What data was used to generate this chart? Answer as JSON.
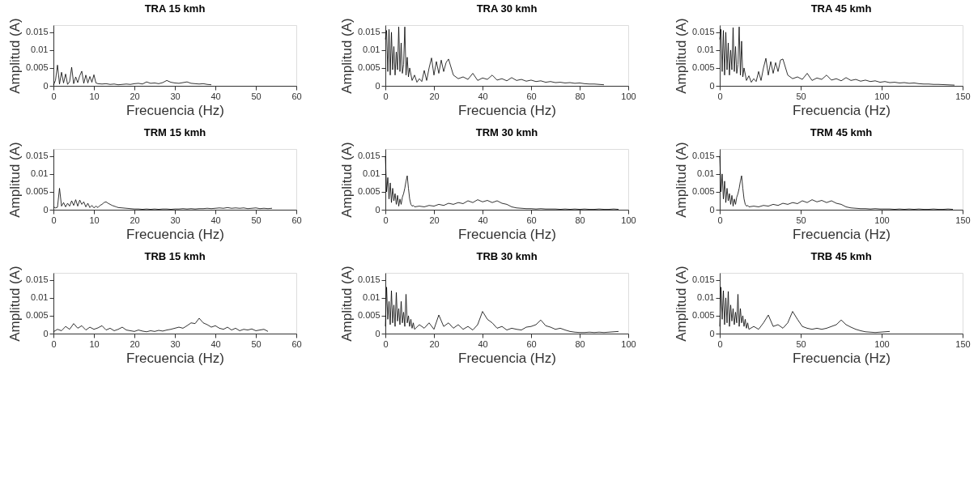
{
  "chart_data": [
    {
      "type": "line",
      "title": "TRA 15 kmh",
      "xlabel": "Frecuencia (Hz)",
      "ylabel": "Amplitud (A)",
      "xlim": [
        0,
        60
      ],
      "xticks": [
        0,
        10,
        20,
        30,
        40,
        50,
        60
      ],
      "ylim": [
        0,
        0.017
      ],
      "yticks": [
        0,
        0.005,
        0.01,
        0.015
      ],
      "grid": false,
      "x": [
        0,
        0.5,
        1,
        1.5,
        2,
        2.5,
        3,
        3.5,
        4,
        4.5,
        5,
        5.5,
        6,
        6.5,
        7,
        7.5,
        8,
        8.5,
        9,
        9.5,
        10,
        10.5,
        11,
        12,
        13,
        14,
        15,
        16,
        17,
        18,
        19,
        20,
        21,
        22,
        23,
        24,
        25,
        26,
        27,
        28,
        29,
        30,
        31,
        32,
        33,
        34,
        35,
        36,
        37,
        38,
        39
      ],
      "series": [
        {
          "color": "#000000",
          "values": [
            0.0002,
            0.0015,
            0.0058,
            0.0005,
            0.0038,
            0.0008,
            0.0033,
            0.0004,
            0.0012,
            0.0052,
            0.0006,
            0.0025,
            0.0009,
            0.0028,
            0.0041,
            0.0007,
            0.003,
            0.0008,
            0.0026,
            0.001,
            0.0031,
            0.0008,
            0.0006,
            0.0005,
            0.0006,
            0.0004,
            0.0005,
            0.0003,
            0.0004,
            0.0005,
            0.0004,
            0.0006,
            0.0007,
            0.0005,
            0.0011,
            0.0007,
            0.0008,
            0.0006,
            0.0009,
            0.0015,
            0.001,
            0.0008,
            0.0007,
            0.0009,
            0.0011,
            0.0007,
            0.0006,
            0.0005,
            0.0006,
            0.0004,
            0.0003
          ]
        }
      ]
    },
    {
      "type": "line",
      "title": "TRA 30 kmh",
      "xlabel": "Frecuencia (Hz)",
      "ylabel": "Amplitud (A)",
      "xlim": [
        0,
        100
      ],
      "xticks": [
        0,
        20,
        40,
        60,
        80,
        100
      ],
      "ylim": [
        0,
        0.017
      ],
      "yticks": [
        0,
        0.005,
        0.01,
        0.015
      ],
      "grid": false,
      "x": [
        0,
        0.5,
        1,
        1.5,
        2,
        2.5,
        3,
        3.5,
        4,
        4.5,
        5,
        5.5,
        6,
        6.5,
        7,
        7.5,
        8,
        8.5,
        9,
        9.5,
        10,
        11,
        12,
        13,
        14,
        15,
        16,
        17,
        18,
        19,
        20,
        21,
        22,
        23,
        24,
        25,
        26,
        28,
        30,
        32,
        34,
        36,
        38,
        40,
        42,
        44,
        46,
        48,
        50,
        52,
        54,
        56,
        58,
        60,
        62,
        64,
        66,
        68,
        70,
        72,
        74,
        76,
        78,
        80,
        82,
        84,
        86,
        88,
        90
      ],
      "series": [
        {
          "color": "#000000",
          "values": [
            0.013,
            0.0155,
            0.004,
            0.0158,
            0.003,
            0.015,
            0.0045,
            0.011,
            0.003,
            0.0095,
            0.0045,
            0.0165,
            0.004,
            0.012,
            0.0035,
            0.006,
            0.0165,
            0.003,
            0.008,
            0.0025,
            0.005,
            0.0015,
            0.003,
            0.001,
            0.002,
            0.0012,
            0.0043,
            0.0015,
            0.005,
            0.0078,
            0.003,
            0.0068,
            0.0035,
            0.0072,
            0.004,
            0.0065,
            0.0075,
            0.003,
            0.002,
            0.0025,
            0.0018,
            0.0035,
            0.0015,
            0.0022,
            0.0018,
            0.003,
            0.0016,
            0.002,
            0.0014,
            0.0023,
            0.0015,
            0.0018,
            0.0013,
            0.0016,
            0.0012,
            0.0014,
            0.001,
            0.0012,
            0.0009,
            0.001,
            0.0008,
            0.0009,
            0.0007,
            0.0008,
            0.0006,
            0.0005,
            0.0005,
            0.0004,
            0.0003
          ]
        }
      ]
    },
    {
      "type": "line",
      "title": "TRA 45 kmh",
      "xlabel": "Frecuencia (Hz)",
      "ylabel": "Amplitud (A)",
      "xlim": [
        0,
        150
      ],
      "xticks": [
        0,
        50,
        100,
        150
      ],
      "ylim": [
        0,
        0.017
      ],
      "yticks": [
        0,
        0.005,
        0.01,
        0.015
      ],
      "grid": false,
      "x": [
        0,
        0.75,
        1.5,
        2.25,
        3,
        3.75,
        4.5,
        5.25,
        6,
        6.75,
        7.5,
        8.25,
        9,
        9.75,
        10.5,
        11.25,
        12,
        12.75,
        13.5,
        14.25,
        15,
        16.5,
        18,
        19.5,
        21,
        22.5,
        24,
        25.5,
        27,
        28.5,
        30,
        31.5,
        33,
        34.5,
        36,
        37.5,
        39,
        42,
        45,
        48,
        51,
        54,
        57,
        60,
        63,
        66,
        69,
        72,
        75,
        78,
        81,
        84,
        87,
        90,
        93,
        96,
        99,
        102,
        105,
        108,
        111,
        114,
        117,
        120,
        123,
        126,
        129,
        132,
        135,
        140,
        145
      ],
      "series": [
        {
          "color": "#000000",
          "values": [
            0.013,
            0.0158,
            0.004,
            0.0155,
            0.003,
            0.015,
            0.0045,
            0.012,
            0.003,
            0.01,
            0.0045,
            0.0163,
            0.004,
            0.011,
            0.0035,
            0.006,
            0.0165,
            0.003,
            0.0125,
            0.0025,
            0.005,
            0.0015,
            0.0028,
            0.001,
            0.002,
            0.0012,
            0.004,
            0.0015,
            0.005,
            0.0077,
            0.003,
            0.0068,
            0.0035,
            0.0065,
            0.004,
            0.0072,
            0.0075,
            0.003,
            0.002,
            0.0025,
            0.0018,
            0.0035,
            0.0015,
            0.0022,
            0.0018,
            0.003,
            0.0016,
            0.002,
            0.0014,
            0.0023,
            0.0015,
            0.0018,
            0.0013,
            0.0016,
            0.0012,
            0.0014,
            0.001,
            0.0012,
            0.0009,
            0.001,
            0.0008,
            0.0009,
            0.0007,
            0.0008,
            0.0006,
            0.0005,
            0.0005,
            0.0004,
            0.0004,
            0.0003,
            0.0002
          ]
        }
      ]
    },
    {
      "type": "line",
      "title": "TRM 15 kmh",
      "xlabel": "Frecuencia (Hz)",
      "ylabel": "Amplitud (A)",
      "xlim": [
        0,
        60
      ],
      "xticks": [
        0,
        10,
        20,
        30,
        40,
        50,
        60
      ],
      "ylim": [
        0,
        0.017
      ],
      "yticks": [
        0,
        0.005,
        0.01,
        0.015
      ],
      "grid": false,
      "x": [
        0,
        0.5,
        1,
        1.5,
        2,
        2.5,
        3,
        3.5,
        4,
        4.5,
        5,
        5.5,
        6,
        6.5,
        7,
        7.5,
        8,
        8.5,
        9,
        9.5,
        10,
        10.5,
        11,
        11.5,
        12,
        12.5,
        13,
        13.5,
        14,
        14.5,
        15,
        15.5,
        16,
        17,
        18,
        19,
        20,
        21,
        22,
        23,
        24,
        25,
        26,
        27,
        28,
        29,
        30,
        31,
        32,
        33,
        34,
        35,
        36,
        37,
        38,
        39,
        40,
        41,
        42,
        43,
        44,
        45,
        46,
        47,
        48,
        49,
        50,
        51,
        52,
        53,
        54
      ],
      "series": [
        {
          "color": "#000000",
          "values": [
            0.0008,
            0.0005,
            0.0007,
            0.006,
            0.001,
            0.002,
            0.0008,
            0.0018,
            0.001,
            0.0025,
            0.0012,
            0.0028,
            0.001,
            0.0027,
            0.0015,
            0.0022,
            0.0008,
            0.0018,
            0.0006,
            0.0012,
            0.0005,
            0.001,
            0.0006,
            0.0012,
            0.0015,
            0.002,
            0.0022,
            0.0018,
            0.0015,
            0.0012,
            0.001,
            0.0008,
            0.0006,
            0.0005,
            0.0004,
            0.0003,
            0.0002,
            0.0002,
            0.0001,
            0.0002,
            0.0001,
            0.0002,
            0.0001,
            0.0002,
            0.0002,
            0.0001,
            0.0002,
            0.0002,
            0.0003,
            0.0002,
            0.0003,
            0.0002,
            0.0003,
            0.0003,
            0.0004,
            0.0003,
            0.0004,
            0.0005,
            0.0004,
            0.0006,
            0.0004,
            0.0005,
            0.0004,
            0.0005,
            0.0003,
            0.0004,
            0.0005,
            0.0003,
            0.0004,
            0.0003,
            0.0004
          ]
        }
      ]
    },
    {
      "type": "line",
      "title": "TRM 30 kmh",
      "xlabel": "Frecuencia (Hz)",
      "ylabel": "Amplitud (A)",
      "xlim": [
        0,
        100
      ],
      "xticks": [
        0,
        20,
        40,
        60,
        80,
        100
      ],
      "ylim": [
        0,
        0.017
      ],
      "yticks": [
        0,
        0.005,
        0.01,
        0.015
      ],
      "grid": false,
      "x": [
        0,
        0.5,
        1,
        1.5,
        2,
        2.5,
        3,
        3.5,
        4,
        4.5,
        5,
        5.5,
        6,
        6.5,
        7,
        7.5,
        8,
        8.5,
        9,
        9.5,
        10,
        10.5,
        11,
        11.5,
        12,
        14,
        16,
        18,
        20,
        22,
        24,
        26,
        28,
        30,
        32,
        34,
        36,
        38,
        40,
        42,
        44,
        46,
        48,
        50,
        52,
        54,
        56,
        58,
        60,
        62,
        64,
        66,
        68,
        70,
        72,
        74,
        76,
        78,
        80,
        82,
        84,
        86,
        88,
        90,
        92,
        94,
        96
      ],
      "series": [
        {
          "color": "#000000",
          "values": [
            0.015,
            0.005,
            0.009,
            0.003,
            0.0075,
            0.002,
            0.006,
            0.0025,
            0.0045,
            0.0015,
            0.004,
            0.001,
            0.003,
            0.0015,
            0.0035,
            0.0045,
            0.006,
            0.008,
            0.0095,
            0.006,
            0.003,
            0.0015,
            0.001,
            0.0012,
            0.0008,
            0.001,
            0.0008,
            0.0012,
            0.001,
            0.0015,
            0.0012,
            0.0018,
            0.0015,
            0.002,
            0.0017,
            0.0025,
            0.002,
            0.0028,
            0.0022,
            0.0026,
            0.002,
            0.0025,
            0.0018,
            0.0015,
            0.0008,
            0.0005,
            0.0004,
            0.0003,
            0.0003,
            0.0002,
            0.0003,
            0.0002,
            0.0002,
            0.0002,
            0.0001,
            0.0002,
            0.0001,
            0.0002,
            0.0001,
            0.0002,
            0.0001,
            0.0001,
            0.0002,
            0.0001,
            0.0001,
            0.0002,
            0.0001
          ]
        }
      ]
    },
    {
      "type": "line",
      "title": "TRM 45 kmh",
      "xlabel": "Frecuencia (Hz)",
      "ylabel": "Amplitud (A)",
      "xlim": [
        0,
        150
      ],
      "xticks": [
        0,
        50,
        100,
        150
      ],
      "ylim": [
        0,
        0.017
      ],
      "yticks": [
        0,
        0.005,
        0.01,
        0.015
      ],
      "grid": false,
      "x": [
        0,
        0.75,
        1.5,
        2.25,
        3,
        3.75,
        4.5,
        5.25,
        6,
        6.75,
        7.5,
        8.25,
        9,
        9.75,
        10.5,
        11.25,
        12,
        12.75,
        13.5,
        14.25,
        15,
        15.75,
        16.5,
        17.25,
        18,
        21,
        24,
        27,
        30,
        33,
        36,
        39,
        42,
        45,
        48,
        51,
        54,
        57,
        60,
        63,
        66,
        69,
        72,
        75,
        78,
        81,
        84,
        87,
        90,
        93,
        96,
        99,
        102,
        105,
        108,
        111,
        114,
        117,
        120,
        123,
        126,
        129,
        132,
        135,
        138,
        141,
        144
      ],
      "series": [
        {
          "color": "#000000",
          "values": [
            0.015,
            0.005,
            0.01,
            0.003,
            0.008,
            0.002,
            0.006,
            0.0025,
            0.0045,
            0.0015,
            0.004,
            0.001,
            0.003,
            0.0015,
            0.0035,
            0.0045,
            0.006,
            0.008,
            0.0095,
            0.006,
            0.003,
            0.0015,
            0.001,
            0.0012,
            0.0008,
            0.001,
            0.0008,
            0.0012,
            0.001,
            0.0015,
            0.0012,
            0.0018,
            0.0015,
            0.002,
            0.0017,
            0.0025,
            0.002,
            0.0028,
            0.0022,
            0.0026,
            0.002,
            0.0025,
            0.0018,
            0.0015,
            0.0008,
            0.0005,
            0.0004,
            0.0003,
            0.0003,
            0.0002,
            0.0003,
            0.0002,
            0.0002,
            0.0002,
            0.0001,
            0.0002,
            0.0001,
            0.0002,
            0.0001,
            0.0002,
            0.0001,
            0.0001,
            0.0002,
            0.0001,
            0.0001,
            0.0002,
            0.0001
          ]
        }
      ]
    },
    {
      "type": "line",
      "title": "TRB 15 kmh",
      "xlabel": "Frecuencia (Hz)",
      "ylabel": "Amplitud (A)",
      "xlim": [
        0,
        60
      ],
      "xticks": [
        0,
        10,
        20,
        30,
        40,
        50,
        60
      ],
      "ylim": [
        0,
        0.017
      ],
      "yticks": [
        0,
        0.005,
        0.01,
        0.015
      ],
      "grid": false,
      "x": [
        0,
        1,
        2,
        3,
        4,
        5,
        6,
        7,
        8,
        9,
        10,
        11,
        12,
        13,
        14,
        15,
        16,
        17,
        18,
        19,
        20,
        21,
        22,
        23,
        24,
        25,
        26,
        27,
        28,
        29,
        30,
        31,
        32,
        33,
        34,
        35,
        36,
        37,
        38,
        39,
        40,
        41,
        42,
        43,
        44,
        45,
        46,
        47,
        48,
        49,
        50,
        51,
        52,
        53
      ],
      "series": [
        {
          "color": "#000000",
          "values": [
            0.0005,
            0.0012,
            0.0008,
            0.002,
            0.0012,
            0.0028,
            0.0015,
            0.0022,
            0.001,
            0.0018,
            0.0012,
            0.0016,
            0.0022,
            0.001,
            0.0015,
            0.0008,
            0.0012,
            0.0018,
            0.001,
            0.0008,
            0.0006,
            0.001,
            0.0007,
            0.0005,
            0.0008,
            0.0006,
            0.0009,
            0.0007,
            0.001,
            0.0012,
            0.0015,
            0.0018,
            0.0015,
            0.0022,
            0.003,
            0.0028,
            0.0043,
            0.003,
            0.0025,
            0.0018,
            0.0022,
            0.0015,
            0.0012,
            0.0018,
            0.001,
            0.0015,
            0.0008,
            0.0012,
            0.001,
            0.0013,
            0.0008,
            0.001,
            0.0012,
            0.0006
          ]
        }
      ]
    },
    {
      "type": "line",
      "title": "TRB 30 kmh",
      "xlabel": "Frecuencia (Hz)",
      "ylabel": "Amplitud (A)",
      "xlim": [
        0,
        100
      ],
      "xticks": [
        0,
        20,
        40,
        60,
        80,
        100
      ],
      "ylim": [
        0,
        0.017
      ],
      "yticks": [
        0,
        0.005,
        0.01,
        0.015
      ],
      "grid": false,
      "x": [
        0,
        0.5,
        1,
        1.5,
        2,
        2.5,
        3,
        3.5,
        4,
        4.5,
        5,
        5.5,
        6,
        6.5,
        7,
        7.5,
        8,
        8.5,
        9,
        9.5,
        10,
        10.5,
        11,
        11.5,
        12,
        14,
        16,
        18,
        20,
        22,
        24,
        26,
        28,
        30,
        32,
        34,
        36,
        38,
        40,
        42,
        44,
        46,
        48,
        50,
        52,
        54,
        56,
        58,
        60,
        62,
        64,
        66,
        68,
        70,
        72,
        74,
        76,
        78,
        80,
        82,
        84,
        86,
        88,
        90,
        92,
        94,
        96
      ],
      "series": [
        {
          "color": "#000000",
          "values": [
            0.002,
            0.013,
            0.004,
            0.009,
            0.0025,
            0.012,
            0.003,
            0.008,
            0.002,
            0.0115,
            0.0035,
            0.007,
            0.0025,
            0.009,
            0.003,
            0.006,
            0.002,
            0.011,
            0.003,
            0.005,
            0.002,
            0.004,
            0.0015,
            0.003,
            0.0012,
            0.0025,
            0.0015,
            0.003,
            0.0012,
            0.0052,
            0.002,
            0.003,
            0.0015,
            0.0025,
            0.0012,
            0.002,
            0.001,
            0.0025,
            0.0062,
            0.004,
            0.003,
            0.0015,
            0.002,
            0.001,
            0.0015,
            0.0012,
            0.001,
            0.0018,
            0.002,
            0.0025,
            0.0038,
            0.0022,
            0.0018,
            0.0012,
            0.0015,
            0.001,
            0.0006,
            0.0004,
            0.0003,
            0.0003,
            0.0004,
            0.0003,
            0.0004,
            0.0003,
            0.0004,
            0.0005,
            0.0006
          ]
        }
      ]
    },
    {
      "type": "line",
      "title": "TRB 45 kmh",
      "xlabel": "Frecuencia (Hz)",
      "ylabel": "Amplitud (A)",
      "xlim": [
        0,
        150
      ],
      "xticks": [
        0,
        50,
        100,
        150
      ],
      "ylim": [
        0,
        0.017
      ],
      "yticks": [
        0,
        0.005,
        0.01,
        0.015
      ],
      "grid": false,
      "x": [
        0,
        0.75,
        1.5,
        2.25,
        3,
        3.75,
        4.5,
        5.25,
        6,
        6.75,
        7.5,
        8.25,
        9,
        9.75,
        10.5,
        11.25,
        12,
        12.75,
        13.5,
        14.25,
        15,
        15.75,
        16.5,
        17.25,
        18,
        21,
        24,
        27,
        30,
        33,
        36,
        39,
        42,
        45,
        48,
        51,
        54,
        57,
        60,
        63,
        66,
        69,
        72,
        75,
        78,
        81,
        84,
        87,
        90,
        93,
        96,
        99,
        102,
        105
      ],
      "series": [
        {
          "color": "#000000",
          "values": [
            0.002,
            0.013,
            0.004,
            0.012,
            0.0025,
            0.01,
            0.003,
            0.0118,
            0.002,
            0.008,
            0.0035,
            0.007,
            0.0025,
            0.006,
            0.003,
            0.011,
            0.002,
            0.007,
            0.003,
            0.005,
            0.002,
            0.004,
            0.0015,
            0.003,
            0.0012,
            0.002,
            0.0012,
            0.003,
            0.0052,
            0.002,
            0.0025,
            0.0015,
            0.003,
            0.0062,
            0.004,
            0.002,
            0.0015,
            0.0012,
            0.0015,
            0.0012,
            0.0015,
            0.002,
            0.0025,
            0.0038,
            0.0025,
            0.0018,
            0.0012,
            0.0008,
            0.0005,
            0.0004,
            0.0003,
            0.0004,
            0.0005,
            0.0006
          ]
        }
      ]
    }
  ]
}
